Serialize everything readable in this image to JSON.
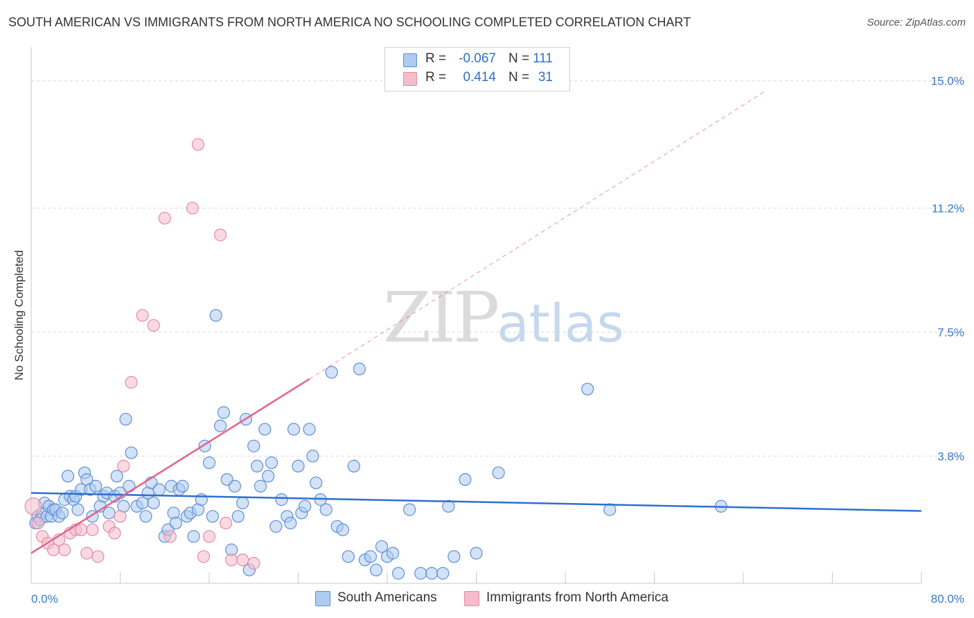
{
  "title": "SOUTH AMERICAN VS IMMIGRANTS FROM NORTH AMERICA NO SCHOOLING COMPLETED CORRELATION CHART",
  "source": "Source: ZipAtlas.com",
  "watermark": {
    "zip": "ZIP",
    "atlas": "atlas"
  },
  "stats": [
    {
      "r_label": "R =",
      "r_value": "-0.067",
      "n_label": "N =",
      "n_value": "111",
      "color": "#aecbf0"
    },
    {
      "r_label": "R =",
      "r_value": "0.414",
      "n_label": "N =",
      "n_value": "31",
      "color": "#f5bccb"
    }
  ],
  "legend": [
    {
      "label": "South Americans",
      "color": "#aecbf0"
    },
    {
      "label": "Immigrants from North America",
      "color": "#f5bccb"
    }
  ],
  "colors": {
    "blue_marker_fill": "#aecbf0",
    "blue_marker_stroke": "#5d8fd6",
    "blue_line": "#2e6fd0",
    "pink_marker_fill": "#f5bccb",
    "pink_marker_stroke": "#e58aa6",
    "pink_line": "#e3638c",
    "grid": "#d9d9d9",
    "tick_text": "#3a78c8"
  },
  "chart_data": {
    "type": "scatter",
    "title": "SOUTH AMERICAN VS IMMIGRANTS FROM NORTH AMERICA NO SCHOOLING COMPLETED CORRELATION CHART",
    "xlabel": "",
    "ylabel": "No Schooling Completed",
    "xlim": [
      0,
      80
    ],
    "ylim": [
      0,
      15.8
    ],
    "x_tick_labels": [
      {
        "value": 0,
        "label": "0.0%"
      },
      {
        "value": 80,
        "label": "80.0%"
      }
    ],
    "y_tick_labels": [
      {
        "value": 3.8,
        "label": "3.8%"
      },
      {
        "value": 7.5,
        "label": "7.5%"
      },
      {
        "value": 11.2,
        "label": "11.2%"
      },
      {
        "value": 15.0,
        "label": "15.0%"
      }
    ],
    "grid": "horizontal dashed",
    "legend_position": "bottom-center",
    "series": [
      {
        "name": "South Americans",
        "x": [
          0.4,
          0.6,
          0.8,
          1.0,
          1.2,
          1.4,
          1.6,
          1.8,
          2.0,
          2.2,
          2.5,
          2.8,
          3.0,
          3.3,
          3.5,
          3.8,
          4.0,
          4.2,
          4.5,
          4.8,
          5.0,
          5.3,
          5.5,
          5.8,
          6.2,
          6.5,
          6.8,
          7.0,
          7.5,
          8.0,
          8.3,
          8.5,
          8.8,
          9.0,
          9.5,
          10.0,
          10.3,
          10.5,
          10.8,
          11.0,
          11.5,
          12.0,
          12.3,
          12.6,
          12.8,
          13.0,
          13.3,
          13.6,
          14.0,
          14.3,
          14.6,
          15.0,
          15.3,
          15.6,
          16.0,
          16.3,
          16.6,
          17.0,
          17.3,
          17.6,
          18.0,
          18.3,
          18.6,
          19.0,
          19.3,
          19.6,
          20.0,
          20.3,
          20.6,
          21.0,
          21.3,
          21.6,
          22.0,
          22.5,
          23.0,
          23.3,
          23.6,
          24.0,
          24.3,
          24.6,
          25.0,
          25.3,
          25.6,
          26.0,
          26.5,
          27.0,
          27.5,
          28.0,
          28.5,
          29.0,
          29.5,
          30.0,
          30.5,
          31.0,
          31.5,
          32.0,
          32.5,
          33.0,
          34.0,
          35.0,
          36.0,
          37.0,
          37.5,
          38.0,
          39.0,
          40.0,
          42.0,
          50.0,
          52.0,
          62.0,
          7.7
        ],
        "y": [
          1.8,
          2.0,
          1.9,
          2.1,
          2.4,
          2.0,
          2.3,
          2.0,
          2.2,
          2.2,
          2.0,
          2.1,
          2.5,
          3.2,
          2.6,
          2.5,
          2.6,
          2.2,
          2.8,
          3.3,
          3.1,
          2.8,
          2.0,
          2.9,
          2.3,
          2.6,
          2.7,
          2.1,
          2.6,
          2.7,
          2.3,
          4.9,
          2.9,
          3.9,
          2.3,
          2.4,
          2.0,
          2.7,
          3.0,
          2.4,
          2.8,
          1.4,
          1.6,
          2.9,
          2.1,
          1.8,
          2.8,
          2.9,
          2.0,
          2.1,
          1.4,
          2.2,
          2.5,
          4.1,
          3.6,
          2.0,
          8.0,
          4.7,
          5.1,
          3.1,
          1.0,
          2.9,
          2.0,
          2.4,
          4.9,
          0.4,
          4.1,
          3.5,
          2.9,
          4.6,
          3.2,
          3.6,
          1.7,
          2.5,
          2.0,
          1.8,
          4.6,
          3.5,
          2.1,
          2.3,
          4.6,
          3.8,
          3.0,
          2.5,
          2.2,
          6.3,
          1.7,
          1.6,
          0.8,
          3.5,
          6.4,
          0.7,
          0.8,
          0.4,
          1.1,
          0.8,
          0.9,
          0.3,
          2.2,
          0.3,
          0.3,
          0.3,
          2.3,
          0.8,
          3.1,
          0.9,
          3.3,
          5.8,
          2.2,
          2.3,
          3.2
        ],
        "trend": {
          "x": [
            0,
            80
          ],
          "y": [
            2.7,
            2.16
          ]
        }
      },
      {
        "name": "Immigrants from North America",
        "x": [
          0.2,
          0.6,
          1.0,
          1.5,
          2.0,
          2.5,
          3.0,
          3.5,
          4.0,
          4.5,
          5.0,
          5.5,
          6.0,
          7.0,
          7.5,
          8.0,
          8.3,
          9.0,
          10.0,
          11.0,
          12.0,
          12.5,
          14.5,
          15.0,
          15.5,
          16.0,
          17.0,
          17.5,
          18.0,
          19.0,
          20.0
        ],
        "y": [
          2.3,
          1.8,
          1.4,
          1.2,
          1.0,
          1.3,
          1.0,
          1.5,
          1.6,
          1.6,
          0.9,
          1.6,
          0.8,
          1.7,
          1.5,
          2.0,
          3.5,
          6.0,
          8.0,
          7.7,
          10.9,
          1.4,
          11.2,
          13.1,
          0.8,
          1.4,
          10.4,
          1.8,
          0.7,
          0.7,
          0.6
        ],
        "trend": {
          "x": [
            0,
            25
          ],
          "y": [
            0.9,
            6.1
          ],
          "dashed_extension": {
            "x": [
              25,
              66
            ],
            "y": [
              6.1,
              14.7
            ]
          }
        }
      }
    ]
  }
}
